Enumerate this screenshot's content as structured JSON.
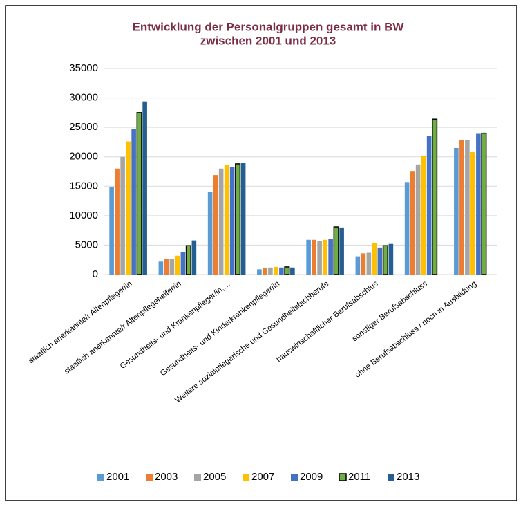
{
  "chart_data": {
    "type": "bar",
    "title": [
      "Entwicklung der Personalgruppen gesamt in BW",
      "zwischen 2001 und 2013"
    ],
    "categories": [
      "staatlich anerkannte/r Altenpfleger/in",
      "staatlich anerkannte/r Altenpflegehelfer/in",
      "Gesundheits- und Krankenpfleger/in,…",
      "Gesundheits- und Kinderkrankenpfleger/in",
      "Weitere sozialpflegerische und Gesundheitsfachberufe",
      "hauswirtschaftlicher Berufsabschlus",
      "sonstiger Berufsabschluss",
      "ohne Berufsabschluss / noch in Ausbildung"
    ],
    "series": [
      {
        "name": "2001",
        "color": "#5b9bd5",
        "values": [
          14800,
          2200,
          14000,
          900,
          5900,
          3100,
          15700,
          21500
        ]
      },
      {
        "name": "2003",
        "color": "#ed7d31",
        "values": [
          18000,
          2600,
          16900,
          1100,
          5900,
          3600,
          17600,
          22900
        ]
      },
      {
        "name": "2005",
        "color": "#a5a5a5",
        "values": [
          20000,
          2700,
          18000,
          1200,
          5700,
          3700,
          18700,
          22900
        ]
      },
      {
        "name": "2007",
        "color": "#ffc000",
        "values": [
          22600,
          3200,
          18600,
          1300,
          5900,
          5300,
          20100,
          20800
        ]
      },
      {
        "name": "2009",
        "color": "#4472c4",
        "values": [
          24700,
          3800,
          18300,
          1200,
          6100,
          4600,
          23500,
          23900
        ]
      },
      {
        "name": "2011",
        "color": "#70ad47",
        "edgecolor": "#000000",
        "values": [
          27500,
          4900,
          18800,
          1300,
          8100,
          4900,
          26400,
          24000
        ]
      },
      {
        "name": "2013",
        "color": "#255e91",
        "values": [
          29400,
          5800,
          19000,
          1200,
          8000,
          5200,
          null,
          null
        ]
      }
    ],
    "ylim": [
      0,
      35000
    ],
    "yticks": [
      0,
      5000,
      10000,
      15000,
      20000,
      25000,
      30000,
      35000
    ],
    "grid": true,
    "legend": "bottom"
  }
}
